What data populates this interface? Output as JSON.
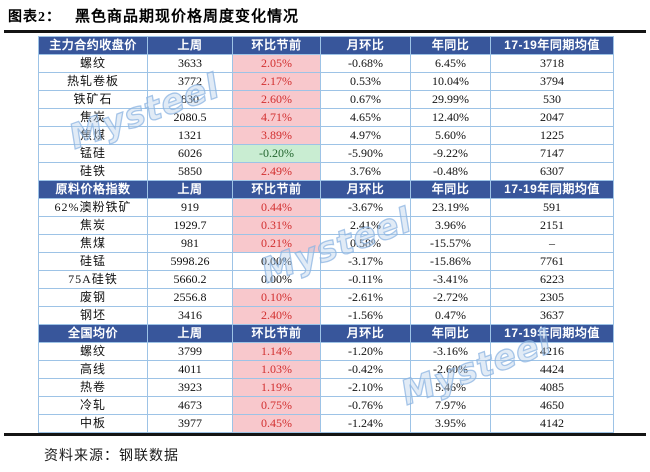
{
  "title": {
    "prefix": "图表2：",
    "text": "黑色商品期现价格周度变化情况"
  },
  "source": "资料来源：钢联数据",
  "watermark": {
    "text": "Mysteel"
  },
  "colors": {
    "header_bg": "#38569B",
    "header_text": "#FFFFFF",
    "cell_border": "#9DC3E6",
    "rise_bg": "#F8C8CC",
    "rise_text": "#D22F2F",
    "fall_bg": "#C9EDD2",
    "fall_text": "#23662F",
    "rule": "#141414",
    "watermark_blue": "#AFCBE8"
  },
  "chart_data": {
    "type": "table",
    "column_keys": [
      "label",
      "last_week",
      "wow",
      "mom",
      "yoy",
      "avg"
    ],
    "sections": [
      {
        "header": [
          "主力合约收盘价",
          "上周",
          "环比节前",
          "月环比",
          "年同比",
          "17-19年同期均值"
        ],
        "rows": [
          {
            "label": "螺纹",
            "last_week": "3633",
            "wow": "2.05%",
            "wow_style": "up",
            "mom": "-0.68%",
            "yoy": "6.45%",
            "avg": "3718"
          },
          {
            "label": "热轧卷板",
            "last_week": "3772",
            "wow": "2.17%",
            "wow_style": "up",
            "mom": "0.53%",
            "yoy": "10.04%",
            "avg": "3794"
          },
          {
            "label": "铁矿石",
            "last_week": "830",
            "wow": "2.60%",
            "wow_style": "up",
            "mom": "0.67%",
            "yoy": "29.99%",
            "avg": "530"
          },
          {
            "label": "焦炭",
            "last_week": "2080.5",
            "wow": "4.71%",
            "wow_style": "up",
            "mom": "4.65%",
            "yoy": "12.40%",
            "avg": "2047"
          },
          {
            "label": "焦煤",
            "last_week": "1321",
            "wow": "3.89%",
            "wow_style": "up",
            "mom": "4.97%",
            "yoy": "5.60%",
            "avg": "1225"
          },
          {
            "label": "锰硅",
            "last_week": "6026",
            "wow": "-0.20%",
            "wow_style": "down",
            "mom": "-5.90%",
            "yoy": "-9.22%",
            "avg": "7147"
          },
          {
            "label": "硅铁",
            "last_week": "5850",
            "wow": "2.49%",
            "wow_style": "up",
            "mom": "3.76%",
            "yoy": "-0.48%",
            "avg": "6307"
          }
        ]
      },
      {
        "header": [
          "原料价格指数",
          "上周",
          "环比节前",
          "月环比",
          "年同比",
          "17-19年同期均值"
        ],
        "rows": [
          {
            "label": "62%澳粉铁矿",
            "last_week": "919",
            "wow": "0.44%",
            "wow_style": "up",
            "mom": "-3.67%",
            "yoy": "23.19%",
            "avg": "591"
          },
          {
            "label": "焦炭",
            "last_week": "1929.7",
            "wow": "0.31%",
            "wow_style": "up",
            "mom": "2.41%",
            "yoy": "3.96%",
            "avg": "2151"
          },
          {
            "label": "焦煤",
            "last_week": "981",
            "wow": "0.21%",
            "wow_style": "up",
            "mom": "0.58%",
            "yoy": "-15.57%",
            "avg": "–"
          },
          {
            "label": "硅锰",
            "last_week": "5998.26",
            "wow": "0.00%",
            "wow_style": "flat",
            "mom": "-3.17%",
            "yoy": "-15.86%",
            "avg": "7761"
          },
          {
            "label": "75A硅铁",
            "last_week": "5660.2",
            "wow": "0.00%",
            "wow_style": "flat",
            "mom": "-0.11%",
            "yoy": "-3.41%",
            "avg": "6223"
          },
          {
            "label": "废钢",
            "last_week": "2556.8",
            "wow": "0.10%",
            "wow_style": "up",
            "mom": "-2.61%",
            "yoy": "-2.72%",
            "avg": "2305"
          },
          {
            "label": "钢坯",
            "last_week": "3416",
            "wow": "2.40%",
            "wow_style": "up",
            "mom": "-1.56%",
            "yoy": "0.47%",
            "avg": "3637"
          }
        ]
      },
      {
        "header": [
          "全国均价",
          "上周",
          "环比节前",
          "月环比",
          "年同比",
          "17-19年同期均值"
        ],
        "rows": [
          {
            "label": "螺纹",
            "last_week": "3799",
            "wow": "1.14%",
            "wow_style": "up",
            "mom": "-1.20%",
            "yoy": "-3.16%",
            "avg": "4216"
          },
          {
            "label": "高线",
            "last_week": "4011",
            "wow": "1.03%",
            "wow_style": "up",
            "mom": "-0.42%",
            "yoy": "-2.60%",
            "avg": "4424"
          },
          {
            "label": "热卷",
            "last_week": "3923",
            "wow": "1.19%",
            "wow_style": "up",
            "mom": "-2.10%",
            "yoy": "5.46%",
            "avg": "4085"
          },
          {
            "label": "冷轧",
            "last_week": "4673",
            "wow": "0.75%",
            "wow_style": "up",
            "mom": "-0.76%",
            "yoy": "7.97%",
            "avg": "4650"
          },
          {
            "label": "中板",
            "last_week": "3977",
            "wow": "0.45%",
            "wow_style": "up",
            "mom": "-1.24%",
            "yoy": "3.95%",
            "avg": "4142"
          }
        ]
      }
    ]
  }
}
